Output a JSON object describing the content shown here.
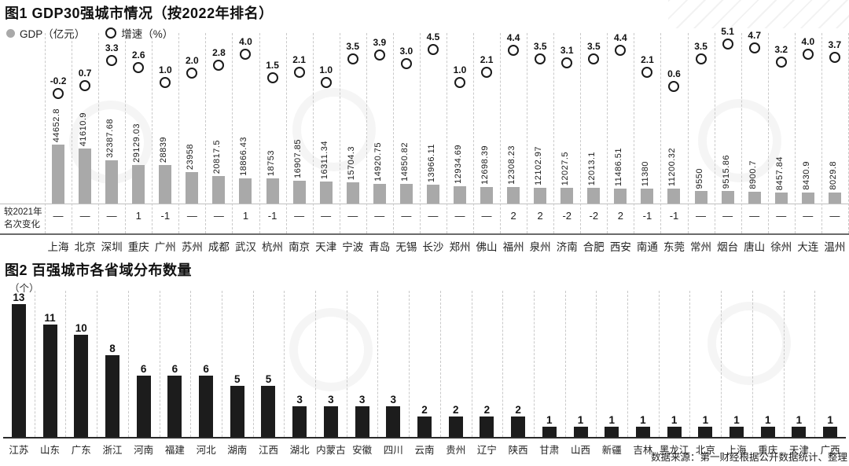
{
  "labels": {
    "rank_header_line1": "较2021年",
    "rank_header_line2": "名次变化"
  },
  "footer": {
    "source_text": "数据来源：第一财经根据公开数据统计、整理"
  },
  "colors": {
    "gdp_bar": "#a9a9a9",
    "count_bar": "#1c1c1c",
    "grid_dash": "#c9c9c9",
    "axis_dark": "#2a2a2a",
    "growth_marker_outline": "#1a1a1a"
  },
  "chart_data": [
    {
      "type": "bar",
      "title": "图1 GDP30强城市情况（按2022年排名）",
      "legend_position": "top-left",
      "grid": true,
      "categories": [
        "上海",
        "北京",
        "深圳",
        "重庆",
        "广州",
        "苏州",
        "成都",
        "武汉",
        "杭州",
        "南京",
        "天津",
        "宁波",
        "青岛",
        "无锡",
        "长沙",
        "郑州",
        "佛山",
        "福州",
        "泉州",
        "济南",
        "合肥",
        "西安",
        "南通",
        "东莞",
        "常州",
        "烟台",
        "唐山",
        "徐州",
        "大连",
        "温州"
      ],
      "series": [
        {
          "name": "GDP（亿元）",
          "type": "bar",
          "values": [
            44652.8,
            41610.9,
            32387.68,
            29129.03,
            28839,
            23958,
            20817.5,
            18866.43,
            18753,
            16907.85,
            16311.34,
            15704.3,
            14920.75,
            14850.82,
            13966.11,
            12934.69,
            12698.39,
            12308.23,
            12102.97,
            12027.5,
            12013.1,
            11486.51,
            11380,
            11200.32,
            9550,
            9515.86,
            8900.7,
            8457.84,
            8430.9,
            8029.8
          ]
        },
        {
          "name": "增速（%）",
          "type": "scatter",
          "values": [
            -0.2,
            0.7,
            3.3,
            2.6,
            1.0,
            2.0,
            2.8,
            4.0,
            1.5,
            2.1,
            1.0,
            3.5,
            3.9,
            3.0,
            4.5,
            1.0,
            2.1,
            4.4,
            3.5,
            3.1,
            3.5,
            4.4,
            2.1,
            0.6,
            3.5,
            5.1,
            4.7,
            3.2,
            4.0,
            3.7
          ]
        },
        {
          "name": "较2021年名次变化",
          "type": "annotation",
          "values": [
            "—",
            "—",
            "—",
            "1",
            "-1",
            "—",
            "—",
            "1",
            "-1",
            "—",
            "—",
            "—",
            "—",
            "—",
            "—",
            "—",
            "—",
            "2",
            "2",
            "-2",
            "-2",
            "2",
            "-1",
            "-1",
            "—",
            "—",
            "—",
            "—",
            "—",
            "—"
          ]
        }
      ],
      "gdp_axis_range": [
        0,
        45000
      ],
      "growth_axis_range": [
        -0.5,
        5.5
      ]
    },
    {
      "type": "bar",
      "title": "图2 百强城市各省域分布数量",
      "ylabel": "（个）",
      "grid": true,
      "categories": [
        "江苏",
        "山东",
        "广东",
        "浙江",
        "河南",
        "福建",
        "河北",
        "湖南",
        "江西",
        "湖北",
        "内蒙古",
        "安徽",
        "四川",
        "云南",
        "贵州",
        "辽宁",
        "陕西",
        "甘肃",
        "山西",
        "新疆",
        "吉林",
        "黑龙江",
        "北京",
        "上海",
        "重庆",
        "天津",
        "广西"
      ],
      "values": [
        13,
        11,
        10,
        8,
        6,
        6,
        6,
        5,
        5,
        3,
        3,
        3,
        3,
        2,
        2,
        2,
        2,
        1,
        1,
        1,
        1,
        1,
        1,
        1,
        1,
        1,
        1
      ],
      "ylim": [
        0,
        14
      ]
    }
  ]
}
